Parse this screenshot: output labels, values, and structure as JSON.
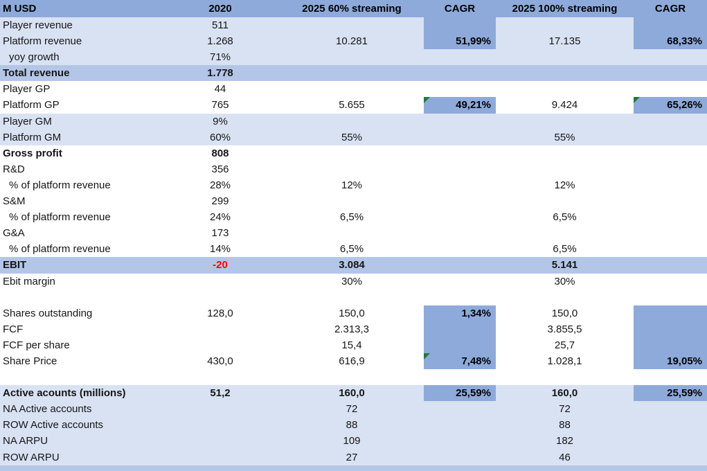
{
  "sheet": {
    "header": {
      "label": "M USD",
      "col_2020": "2020",
      "col_60": "2025 60% streaming",
      "col_cagr1": "CAGR",
      "col_100": "2025 100% streaming",
      "col_cagr2": "CAGR"
    },
    "colors": {
      "header_bg": "#8EAADB",
      "band_bg": "#B4C6E7",
      "light_row_bg": "#D9E2F3",
      "dark_cagr_cell_bg": "#8EAADB",
      "negative_text": "#FF0000",
      "flag_triangle": "#1E7B38"
    },
    "rows": [
      {
        "label": "Player revenue",
        "bg": "light",
        "c2020": "511",
        "c60": "",
        "cagr1": "",
        "c100": "",
        "cagr2": ""
      },
      {
        "label": "Platform revenue",
        "bg": "light",
        "c2020": "1.268",
        "c60": "10.281",
        "cagr1": "",
        "c100": "17.135",
        "cagr2": ""
      },
      {
        "label": "yoy growth",
        "indent": true,
        "bg": "light",
        "c2020": "71%",
        "c60": "",
        "cagr1": "",
        "c100": "",
        "cagr2": ""
      },
      {
        "label": "Total revenue",
        "bold": true,
        "bg": "band",
        "c2020": "1.778",
        "c60": "",
        "cagr1": "",
        "c100": "",
        "cagr2": ""
      },
      {
        "label": "Player GP",
        "bg": "white",
        "c2020": "44",
        "c60": "",
        "cagr1": "",
        "c100": "",
        "cagr2": ""
      },
      {
        "label": "Platform GP",
        "bg": "white",
        "c2020": "765",
        "c60": "5.655",
        "cagr1": "49,21%",
        "cagr1_dark": true,
        "cagr1_flag": true,
        "c100": "9.424",
        "cagr2": "65,26%",
        "cagr2_dark": true,
        "cagr2_flag": true
      },
      {
        "label": "Player GM",
        "bg": "light",
        "c2020": "9%",
        "c60": "",
        "cagr1": "",
        "c100": "",
        "cagr2": ""
      },
      {
        "label": "Platform GM",
        "bg": "light",
        "c2020": "60%",
        "c60": "55%",
        "cagr1": "",
        "c100": "55%",
        "cagr2": ""
      },
      {
        "label": "Gross profit",
        "bold": true,
        "bg": "white",
        "c2020": "808",
        "c60": "",
        "cagr1": "",
        "c100": "",
        "cagr2": ""
      },
      {
        "label": "R&D",
        "bg": "white",
        "c2020": "356",
        "c60": "",
        "cagr1": "",
        "c100": "",
        "cagr2": ""
      },
      {
        "label": "% of platform revenue",
        "indent": true,
        "bg": "white",
        "c2020": "28%",
        "c60": "12%",
        "cagr1": "",
        "c100": "12%",
        "cagr2": ""
      },
      {
        "label": "S&M",
        "bg": "white",
        "c2020": "299",
        "c60": "",
        "cagr1": "",
        "c100": "",
        "cagr2": ""
      },
      {
        "label": "% of platform revenue",
        "indent": true,
        "bg": "white",
        "c2020": "24%",
        "c60": "6,5%",
        "cagr1": "",
        "c100": "6,5%",
        "cagr2": ""
      },
      {
        "label": "G&A",
        "bg": "white",
        "c2020": "173",
        "c60": "",
        "cagr1": "",
        "c100": "",
        "cagr2": ""
      },
      {
        "label": "% of platform revenue",
        "indent": true,
        "bg": "white",
        "c2020": "14%",
        "c60": "6,5%",
        "cagr1": "",
        "c100": "6,5%",
        "cagr2": ""
      },
      {
        "label": "EBIT",
        "bold": true,
        "bg": "band",
        "c2020": "-20",
        "c2020_negative": true,
        "c60": "3.084",
        "cagr1": "",
        "c100": "5.141",
        "cagr2": ""
      },
      {
        "label": "Ebit margin",
        "bg": "white",
        "c2020": "",
        "c60": "30%",
        "cagr1": "",
        "c100": "30%",
        "cagr2": ""
      },
      {
        "label": "",
        "bg": "white",
        "c2020": "",
        "c60": "",
        "cagr1": "",
        "c100": "",
        "cagr2": ""
      },
      {
        "label": "Shares outstanding",
        "bg": "white",
        "c2020": "128,0",
        "c60": "150,0",
        "cagr1": "",
        "c100": "150,0",
        "cagr2": ""
      },
      {
        "label": "FCF",
        "bg": "white",
        "c2020": "",
        "c60": "2.313,3",
        "cagr1": "",
        "c100": "3.855,5",
        "cagr2": ""
      },
      {
        "label": "FCF per share",
        "bg": "white",
        "c2020": "",
        "c60": "15,4",
        "cagr1": "",
        "c100": "25,7",
        "cagr2": ""
      },
      {
        "label": "Share Price",
        "bg": "white",
        "c2020": "430,0",
        "c60": "616,9",
        "cagr1": "",
        "c100": "1.028,1",
        "cagr2": ""
      },
      {
        "label": "",
        "bg": "white",
        "c2020": "",
        "c60": "",
        "cagr1": "",
        "c100": "",
        "cagr2": ""
      },
      {
        "label": "Active acounts (millions)",
        "bold": true,
        "bg": "light",
        "c2020": "51,2",
        "c60": "160,0",
        "cagr1": "25,59%",
        "cagr1_dark": true,
        "c100": "160,0",
        "cagr2": "25,59%",
        "cagr2_dark": true
      },
      {
        "label": "NA Active accounts",
        "bg": "light",
        "c2020": "",
        "c60": "72",
        "cagr1": "",
        "c100": "72",
        "cagr2": ""
      },
      {
        "label": "ROW Active accounts",
        "bg": "light",
        "c2020": "",
        "c60": "88",
        "cagr1": "",
        "c100": "88",
        "cagr2": ""
      },
      {
        "label": "NA ARPU",
        "bg": "light",
        "c2020": "",
        "c60": "109",
        "cagr1": "",
        "c100": "182",
        "cagr2": ""
      },
      {
        "label": "ROW ARPU",
        "bg": "light",
        "c2020": "",
        "c60": "27",
        "cagr1": "",
        "c100": "46",
        "cagr2": ""
      }
    ],
    "merged_cagr_blocks": [
      {
        "column": "cagr1",
        "from_row": 1,
        "to_row": 2,
        "top_value": "",
        "bottom_value": "51,99%",
        "flag_row": null
      },
      {
        "column": "cagr2",
        "from_row": 1,
        "to_row": 2,
        "top_value": "",
        "bottom_value": "68,33%",
        "flag_row": null
      },
      {
        "column": "cagr1",
        "from_row": 19,
        "to_row": 22,
        "top_value": "1,34%",
        "bottom_value": "7,48%",
        "flag_row": 22
      },
      {
        "column": "cagr2",
        "from_row": 19,
        "to_row": 22,
        "top_value": "",
        "bottom_value": "19,05%",
        "flag_row": null
      }
    ]
  }
}
